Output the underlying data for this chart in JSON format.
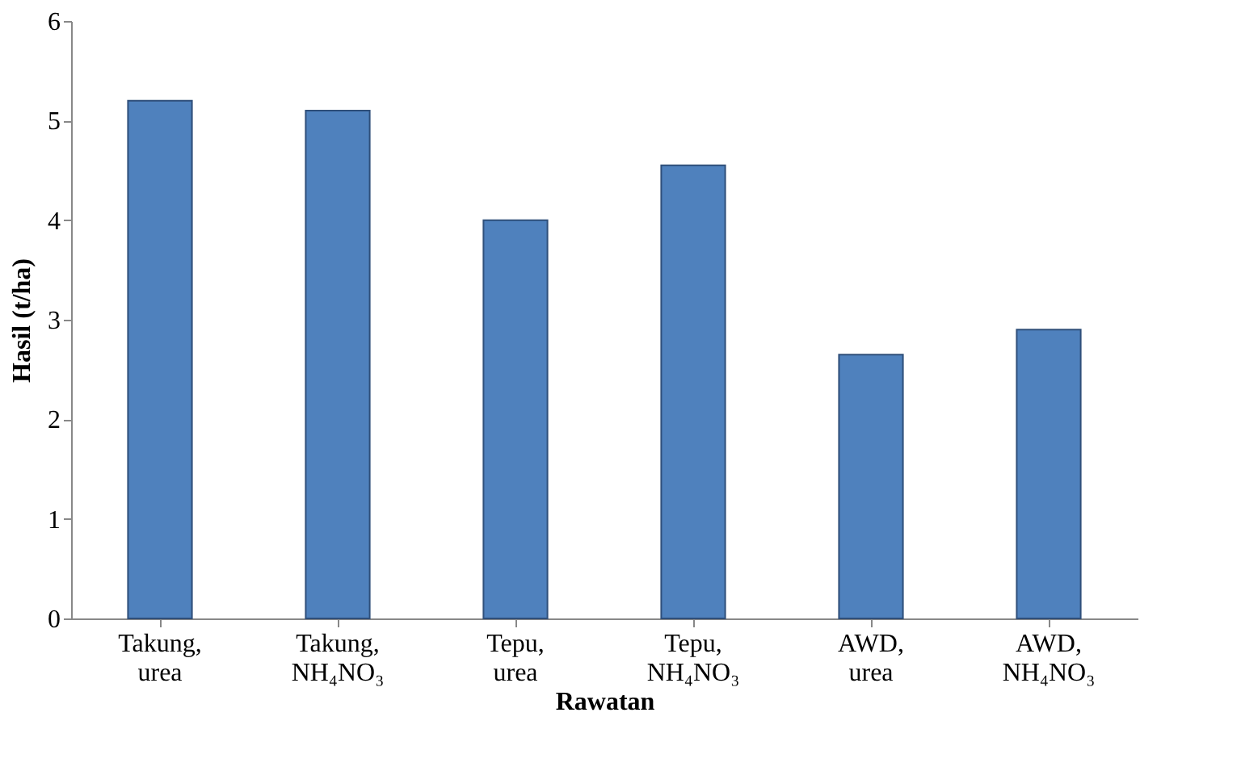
{
  "chart_data": {
    "type": "bar",
    "xlabel": "Rawatan",
    "ylabel": "Hasil (t/ha)",
    "categories": [
      "Takung, urea",
      "Takung, NH₄NO₃",
      "Tepu, urea",
      "Tepu, NH₄NO₃",
      "AWD, urea",
      "AWD, NH₄NO₃"
    ],
    "values": [
      5.2,
      5.1,
      4.0,
      4.55,
      2.65,
      2.9
    ],
    "color": "#4f81bd",
    "ylim": [
      0,
      6
    ],
    "yticks": [
      0,
      1,
      2,
      3,
      4,
      5,
      6
    ],
    "grid": false
  }
}
